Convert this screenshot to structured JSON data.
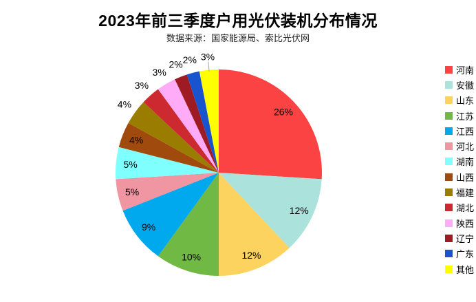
{
  "chart_data": {
    "type": "pie",
    "title": "2023年前三季度户用光伏装机分布情况",
    "subtitle": "数据来源：国家能源局、索比光伏网",
    "unit": "%",
    "start_angle": "top",
    "direction": "clockwise",
    "legend_position": "right",
    "background": "#ffffff",
    "label_color": "#000000",
    "series": [
      {
        "name": "河南",
        "value": 26,
        "color": "#FB4343",
        "label_inside": true
      },
      {
        "name": "安徽",
        "value": 12,
        "color": "#ABE2DC",
        "label_inside": true
      },
      {
        "name": "山东",
        "value": 12,
        "color": "#FBD35E",
        "label_inside": true
      },
      {
        "name": "江苏",
        "value": 10,
        "color": "#6FB944",
        "label_inside": true
      },
      {
        "name": "江西",
        "value": 9,
        "color": "#00A9EE",
        "label_inside": true
      },
      {
        "name": "河北",
        "value": 5,
        "color": "#F096A3",
        "label_inside": true
      },
      {
        "name": "湖南",
        "value": 5,
        "color": "#80FFFF",
        "label_inside": true
      },
      {
        "name": "山西",
        "value": 4,
        "color": "#A14A0D",
        "label_inside": true
      },
      {
        "name": "福建",
        "value": 4,
        "color": "#9A7C00",
        "label_inside": false
      },
      {
        "name": "湖北",
        "value": 3,
        "color": "#CC2A30",
        "label_inside": false
      },
      {
        "name": "陕西",
        "value": 3,
        "color": "#FFABF7",
        "label_inside": false
      },
      {
        "name": "辽宁",
        "value": 2,
        "color": "#9E1B24",
        "label_inside": false
      },
      {
        "name": "广东",
        "value": 2,
        "color": "#1A53CE",
        "label_inside": false
      },
      {
        "name": "其他",
        "value": 3,
        "color": "#FFFF00",
        "label_inside": false,
        "leader_line": true
      }
    ]
  }
}
